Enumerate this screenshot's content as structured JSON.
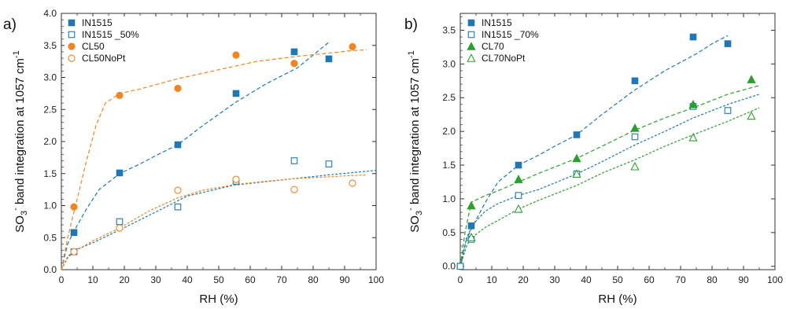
{
  "chart_data": [
    {
      "type": "scatter",
      "panel_label": "a)",
      "xlabel": "RH (%)",
      "ylabel_main": "SO",
      "ylabel_sub": "3",
      "ylabel_sup": "-",
      "ylabel_rest": " band integration at 1057 cm",
      "ylabel_exp": "-1",
      "xlim": [
        0,
        100
      ],
      "ylim": [
        0,
        4.0
      ],
      "xticks": [
        "0",
        "10",
        "20",
        "30",
        "40",
        "50",
        "60",
        "70",
        "80",
        "90",
        "100"
      ],
      "yticks": [
        "0.0",
        "0.5",
        "1.0",
        "1.5",
        "2.0",
        "2.5",
        "3.0",
        "3.5",
        "4.0"
      ],
      "legend_position": "top-left",
      "series": [
        {
          "name": "IN1515",
          "color": "#1f77b4",
          "marker": "square",
          "filled": true,
          "x": [
            4,
            18.5,
            37,
            55.5,
            74,
            85
          ],
          "y": [
            0.58,
            1.51,
            1.95,
            2.75,
            3.4,
            3.29
          ],
          "fit_x": [
            0,
            2,
            4,
            8,
            12,
            18.5,
            25,
            30,
            37,
            45,
            55,
            65,
            75,
            80,
            85
          ],
          "fit_y": [
            0,
            0.4,
            0.6,
            0.95,
            1.25,
            1.5,
            1.65,
            1.78,
            1.95,
            2.25,
            2.6,
            2.9,
            3.15,
            3.35,
            3.55
          ]
        },
        {
          "name": "IN1515 _50%",
          "color": "#1f77b4",
          "marker": "square",
          "filled": false,
          "x": [
            4,
            18.5,
            37,
            55.5,
            74,
            85
          ],
          "y": [
            0.28,
            0.75,
            0.98,
            1.38,
            1.7,
            1.65
          ],
          "fit_x": [
            0,
            2,
            4,
            10,
            18.5,
            30,
            40,
            55,
            70,
            85,
            100
          ],
          "fit_y": [
            0,
            0.2,
            0.3,
            0.42,
            0.62,
            0.9,
            1.15,
            1.32,
            1.4,
            1.48,
            1.55
          ]
        },
        {
          "name": "CL50",
          "color": "#f28522",
          "marker": "circle",
          "filled": true,
          "x": [
            4,
            18.5,
            37,
            55.5,
            74,
            92.5
          ],
          "y": [
            0.98,
            2.72,
            2.83,
            3.35,
            3.22,
            3.48
          ],
          "fit_x": [
            0,
            2,
            5,
            8,
            11,
            14,
            18.5,
            25,
            37,
            50,
            62,
            75,
            85,
            92.5,
            97
          ],
          "fit_y": [
            0,
            0.5,
            1.1,
            1.7,
            2.25,
            2.6,
            2.75,
            2.82,
            2.98,
            3.12,
            3.25,
            3.33,
            3.38,
            3.42,
            3.43
          ]
        },
        {
          "name": "CL50NoPt",
          "color": "#f28522",
          "marker": "circle",
          "filled": false,
          "x": [
            4,
            18.5,
            37,
            55.5,
            74,
            92.5
          ],
          "y": [
            0.28,
            0.65,
            1.24,
            1.41,
            1.25,
            1.35
          ],
          "fit_x": [
            0,
            2,
            4,
            10,
            18.5,
            28,
            37,
            45,
            55.5,
            65,
            74,
            85,
            92.5,
            97
          ],
          "fit_y": [
            0,
            0.18,
            0.28,
            0.45,
            0.65,
            0.92,
            1.12,
            1.24,
            1.33,
            1.38,
            1.42,
            1.45,
            1.47,
            1.48
          ]
        }
      ]
    },
    {
      "type": "scatter",
      "panel_label": "b)",
      "xlabel": "RH (%)",
      "ylabel_main": "SO",
      "ylabel_sub": "3",
      "ylabel_sup": "-",
      "ylabel_rest": " band integration at 1057 cm",
      "ylabel_exp": "-1",
      "xlim": [
        0,
        100
      ],
      "ylim": [
        -0.05,
        3.75
      ],
      "xticks": [
        "0",
        "10",
        "20",
        "30",
        "40",
        "50",
        "60",
        "70",
        "80",
        "90",
        "100"
      ],
      "yticks": [
        "0.0",
        "0.5",
        "1.0",
        "1.5",
        "2.0",
        "2.5",
        "3.0",
        "3.5"
      ],
      "legend_position": "top-left",
      "series": [
        {
          "name": "IN1515",
          "color": "#1f77b4",
          "marker": "square",
          "filled": true,
          "x": [
            0,
            3.5,
            18.5,
            37,
            55.5,
            74,
            85
          ],
          "y": [
            0,
            0.6,
            1.5,
            1.95,
            2.75,
            3.4,
            3.3
          ],
          "fit_x": [
            0,
            2,
            4,
            8,
            12,
            18.5,
            25,
            30,
            37,
            45,
            55,
            65,
            75,
            80,
            85
          ],
          "fit_y": [
            0,
            0.4,
            0.6,
            0.95,
            1.25,
            1.5,
            1.65,
            1.78,
            1.95,
            2.25,
            2.6,
            2.9,
            3.15,
            3.3,
            3.42
          ]
        },
        {
          "name": "IN1515 _70%",
          "color": "#1f77b4",
          "marker": "square",
          "filled": false,
          "x": [
            0,
            3.5,
            18.5,
            37,
            55.5,
            74,
            85
          ],
          "y": [
            0,
            0.4,
            1.05,
            1.37,
            1.92,
            2.37,
            2.31
          ],
          "fit_x": [
            0,
            2,
            4,
            8,
            12,
            18.5,
            25,
            37,
            45,
            55.5,
            65,
            74,
            85,
            95
          ],
          "fit_y": [
            0,
            0.42,
            0.62,
            0.82,
            0.93,
            1.05,
            1.14,
            1.37,
            1.55,
            1.8,
            2.0,
            2.2,
            2.4,
            2.55
          ]
        },
        {
          "name": "CL70",
          "color": "#2ca02c",
          "marker": "triangle",
          "filled": true,
          "x": [
            3.5,
            18.5,
            37,
            55.5,
            74,
            92.5
          ],
          "y": [
            0.9,
            1.29,
            1.6,
            2.05,
            2.4,
            2.77
          ],
          "fit_x": [
            0,
            1.5,
            3.5,
            8,
            12,
            18.5,
            25,
            37,
            45,
            55.5,
            65,
            74,
            85,
            95
          ],
          "fit_y": [
            0,
            0.5,
            0.95,
            1.05,
            1.12,
            1.25,
            1.38,
            1.6,
            1.78,
            2.02,
            2.2,
            2.35,
            2.55,
            2.68
          ]
        },
        {
          "name": "CL70NoPt",
          "color": "#2ca02c",
          "marker": "triangle",
          "filled": false,
          "x": [
            3.5,
            18.5,
            37,
            55.5,
            74,
            92.5
          ],
          "y": [
            0.43,
            0.85,
            1.37,
            1.48,
            1.91,
            2.23
          ],
          "fit_x": [
            0,
            2,
            3.5,
            8,
            12,
            18.5,
            25,
            37,
            45,
            55.5,
            65,
            74,
            85,
            95
          ],
          "fit_y": [
            0,
            0.3,
            0.42,
            0.58,
            0.68,
            0.85,
            0.98,
            1.2,
            1.38,
            1.58,
            1.78,
            1.95,
            2.15,
            2.35
          ]
        }
      ]
    }
  ]
}
